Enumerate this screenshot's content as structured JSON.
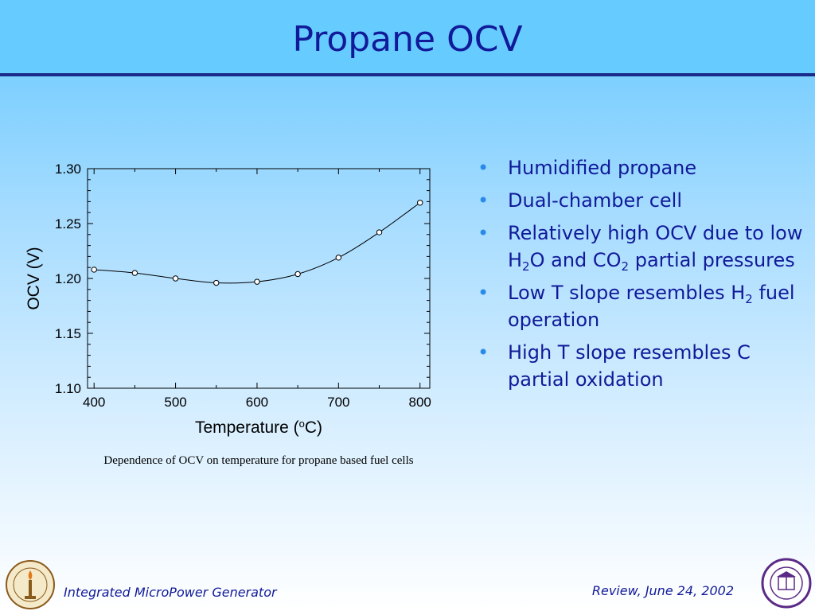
{
  "slide": {
    "title": "Propane OCV",
    "caption": "Dependence of OCV on temperature for propane based fuel cells",
    "bullets": [
      {
        "parts": [
          {
            "t": "Humidified propane"
          }
        ]
      },
      {
        "parts": [
          {
            "t": "Dual-chamber cell"
          }
        ]
      },
      {
        "parts": [
          {
            "t": "Relatively high OCV due to low H"
          },
          {
            "sub": "2"
          },
          {
            "t": "O and CO"
          },
          {
            "sub": "2"
          },
          {
            "t": " partial pressures"
          }
        ]
      },
      {
        "parts": [
          {
            "t": "Low T slope resembles H"
          },
          {
            "sub": "2"
          },
          {
            "t": " fuel operation"
          }
        ]
      },
      {
        "parts": [
          {
            "t": "High T slope resembles C partial oxidation"
          }
        ]
      }
    ],
    "footer_left": "Integrated MicroPower Generator",
    "footer_right": "Review, June 24, 2002",
    "logo_left_icon": "caltech-seal-icon",
    "logo_right_icon": "northwestern-seal-icon"
  },
  "colors": {
    "title": "#111a99",
    "bullet_dot": "#2a8ae8",
    "rule": "#1a2a8a"
  },
  "chart_data": {
    "type": "line",
    "title": "",
    "xlabel": "Temperature (°C)",
    "ylabel": "OCV (V)",
    "xlim": [
      392,
      812
    ],
    "ylim": [
      1.1,
      1.3
    ],
    "xticks": [
      400,
      500,
      600,
      700,
      800
    ],
    "xtick_labels": [
      "400",
      "500",
      "600",
      "700",
      "800"
    ],
    "yticks": [
      1.1,
      1.15,
      1.2,
      1.25,
      1.3
    ],
    "ytick_labels": [
      "1.10",
      "1.15",
      "1.20",
      "1.25",
      "1.30"
    ],
    "grid": false,
    "legend": "none",
    "series": [
      {
        "x": [
          400,
          450,
          500,
          550,
          600,
          650,
          700,
          750,
          800
        ],
        "y": [
          1.208,
          1.205,
          1.2,
          1.196,
          1.197,
          1.204,
          1.219,
          1.242,
          1.269
        ],
        "marker": "open-circle",
        "line": "smooth"
      }
    ]
  }
}
